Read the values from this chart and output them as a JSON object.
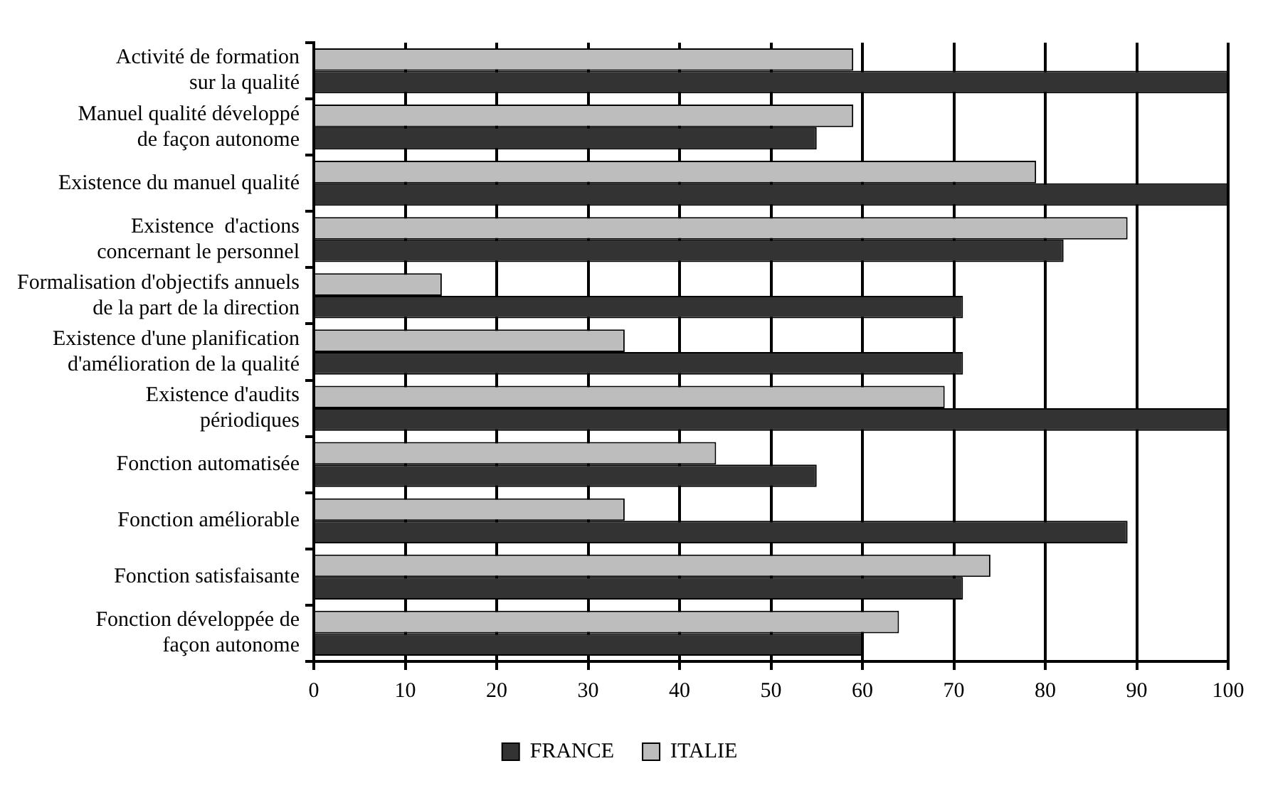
{
  "chart_data": {
    "type": "bar",
    "orientation": "horizontal",
    "categories": [
      "Activité de formation\nsur la qualité",
      "Manuel qualité développé\nde façon autonome",
      "Existence du manuel qualité",
      "Existence  d'actions\nconcernant le personnel",
      "Formalisation d'objectifs annuels\nde la part de la direction",
      "Existence d'une planification\nd'amélioration de la qualité",
      "Existence d'audits\npériodiques",
      "Fonction automatisée",
      "Fonction améliorable",
      "Fonction satisfaisante",
      "Fonction développée de\nfaçon autonome"
    ],
    "series": [
      {
        "name": "ITALIE",
        "color": "#bdbdbd",
        "values": [
          59,
          59,
          79,
          89,
          14,
          34,
          69,
          44,
          34,
          74,
          64
        ]
      },
      {
        "name": "FRANCE",
        "color": "#333333",
        "values": [
          100,
          55,
          100,
          82,
          71,
          71,
          100,
          55,
          89,
          71,
          60
        ]
      }
    ],
    "xlim": [
      0,
      100
    ],
    "xticks": [
      0,
      10,
      20,
      30,
      40,
      50,
      60,
      70,
      80,
      90,
      100
    ],
    "grid": "x",
    "legend": "bottom"
  }
}
